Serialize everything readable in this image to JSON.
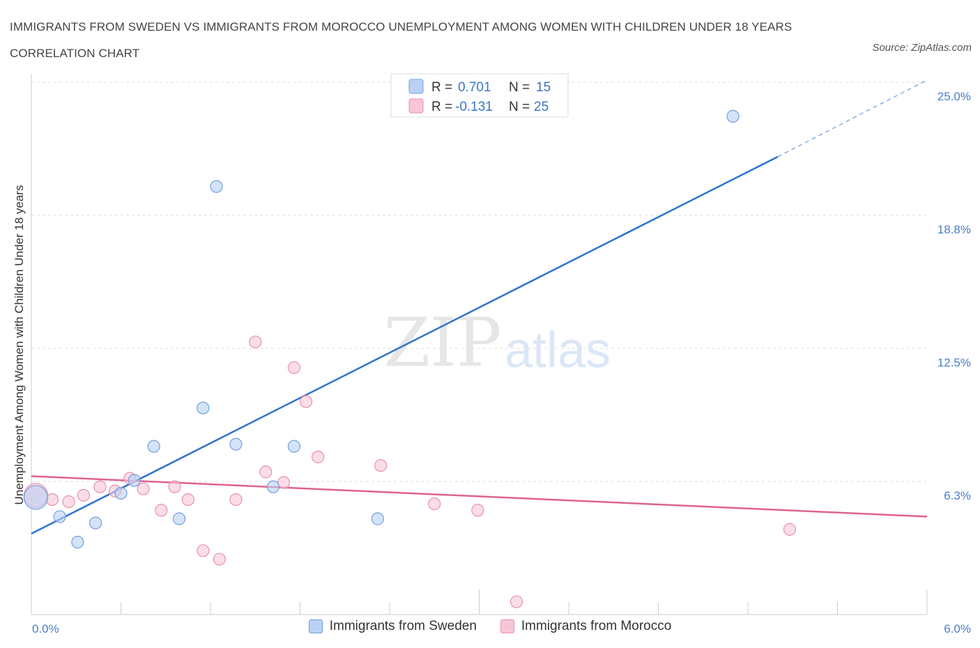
{
  "title": "IMMIGRANTS FROM SWEDEN VS IMMIGRANTS FROM MOROCCO UNEMPLOYMENT AMONG WOMEN WITH CHILDREN UNDER 18 YEARS CORRELATION CHART",
  "source": "Source: ZipAtlas.com",
  "watermark": {
    "zip": "ZIP",
    "atlas": "atlas"
  },
  "colors": {
    "sweden_fill": "#b9d1f3",
    "sweden_stroke": "#6f9fe0",
    "sweden_line": "#2f72d0",
    "morocco_fill": "#f7c6d6",
    "morocco_stroke": "#e990ae",
    "morocco_line": "#e0628e",
    "grid": "#dddddd",
    "tick_text": "#4a7ec9"
  },
  "legend": {
    "rows": [
      {
        "r_label": "R =",
        "r_value": "0.701",
        "n_label": "N =",
        "n_value": "15"
      },
      {
        "r_label": "R =",
        "r_value": "-0.131",
        "n_label": "N =",
        "n_value": "25"
      }
    ]
  },
  "bottom_legend": [
    {
      "label": "Immigrants from Sweden"
    },
    {
      "label": "Immigrants from Morocco"
    }
  ],
  "chart_data": {
    "type": "scatter",
    "title": "IMMIGRANTS FROM SWEDEN VS IMMIGRANTS FROM MOROCCO UNEMPLOYMENT AMONG WOMEN WITH CHILDREN UNDER 18 YEARS CORRELATION CHART",
    "xlabel": "",
    "ylabel": "Unemployment Among Women with Children Under 18 years",
    "xlim": [
      0,
      6.0
    ],
    "ylim": [
      0,
      25.0
    ],
    "x_tick_labels": [
      "0.0%",
      "6.0%"
    ],
    "y_tick_labels": [
      "6.3%",
      "12.5%",
      "18.8%",
      "25.0%"
    ],
    "y_ticks": [
      6.25,
      12.5,
      18.75,
      25.0
    ],
    "grid": true,
    "legend_position": "top-center",
    "series": [
      {
        "name": "Immigrants from Sweden",
        "r": 0.701,
        "n": 15,
        "points": [
          {
            "x": 0.03,
            "y": 5.5,
            "size": "large"
          },
          {
            "x": 0.19,
            "y": 4.6
          },
          {
            "x": 0.31,
            "y": 3.4
          },
          {
            "x": 0.43,
            "y": 4.3
          },
          {
            "x": 0.6,
            "y": 5.7
          },
          {
            "x": 0.69,
            "y": 6.3
          },
          {
            "x": 0.82,
            "y": 7.9
          },
          {
            "x": 0.99,
            "y": 4.5
          },
          {
            "x": 1.15,
            "y": 9.7
          },
          {
            "x": 1.24,
            "y": 20.1
          },
          {
            "x": 1.37,
            "y": 8.0
          },
          {
            "x": 1.62,
            "y": 6.0
          },
          {
            "x": 1.76,
            "y": 7.9
          },
          {
            "x": 2.32,
            "y": 4.5
          },
          {
            "x": 4.7,
            "y": 23.4
          }
        ],
        "trend": {
          "x": [
            0,
            5.0
          ],
          "y": [
            3.8,
            21.5
          ],
          "extension_x": [
            5.0,
            6.0
          ],
          "extension_y": [
            21.5,
            25.1
          ]
        }
      },
      {
        "name": "Immigrants from Morocco",
        "r": -0.131,
        "n": 25,
        "points": [
          {
            "x": 0.03,
            "y": 5.6,
            "size": "large"
          },
          {
            "x": 0.14,
            "y": 5.4
          },
          {
            "x": 0.25,
            "y": 5.3
          },
          {
            "x": 0.35,
            "y": 5.6
          },
          {
            "x": 0.46,
            "y": 6.0
          },
          {
            "x": 0.56,
            "y": 5.8
          },
          {
            "x": 0.66,
            "y": 6.4
          },
          {
            "x": 0.75,
            "y": 5.9
          },
          {
            "x": 0.87,
            "y": 4.9
          },
          {
            "x": 0.96,
            "y": 6.0
          },
          {
            "x": 1.05,
            "y": 5.4
          },
          {
            "x": 1.15,
            "y": 3.0
          },
          {
            "x": 1.26,
            "y": 2.6
          },
          {
            "x": 1.37,
            "y": 5.4
          },
          {
            "x": 1.5,
            "y": 12.8
          },
          {
            "x": 1.57,
            "y": 6.7
          },
          {
            "x": 1.69,
            "y": 6.2
          },
          {
            "x": 1.76,
            "y": 11.6
          },
          {
            "x": 1.84,
            "y": 10.0
          },
          {
            "x": 1.92,
            "y": 7.4
          },
          {
            "x": 2.34,
            "y": 7.0
          },
          {
            "x": 2.7,
            "y": 5.2
          },
          {
            "x": 2.99,
            "y": 4.9
          },
          {
            "x": 3.25,
            "y": 0.6
          },
          {
            "x": 5.08,
            "y": 4.0
          }
        ],
        "trend": {
          "x": [
            0,
            6.0
          ],
          "y": [
            6.5,
            4.6
          ]
        }
      }
    ]
  }
}
